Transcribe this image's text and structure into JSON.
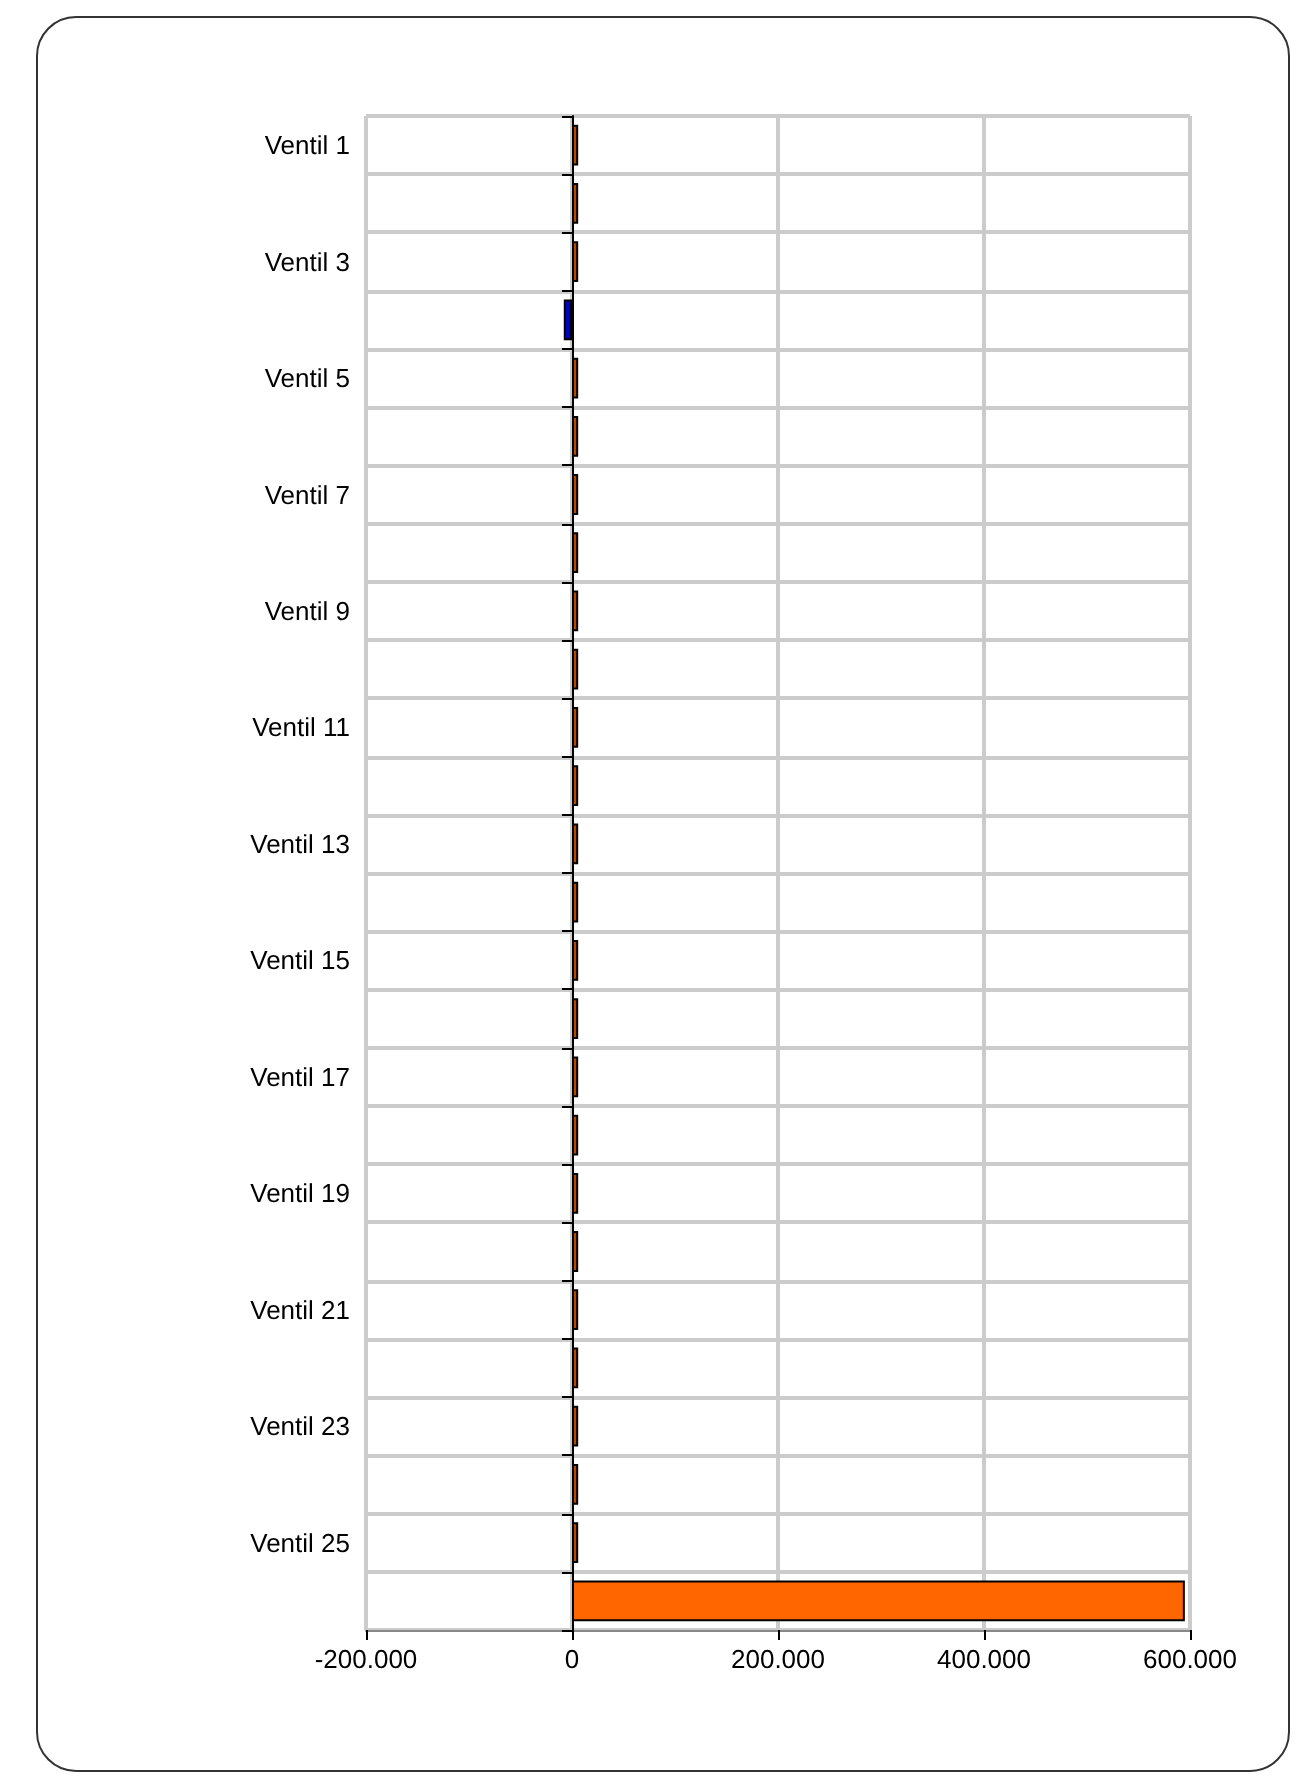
{
  "chart_data": {
    "type": "bar",
    "orientation": "horizontal",
    "categories": [
      "Ventil 1",
      null,
      "Ventil 3",
      null,
      "Ventil 5",
      null,
      "Ventil 7",
      null,
      "Ventil 9",
      null,
      "Ventil 11",
      null,
      "Ventil 13",
      null,
      "Ventil 15",
      null,
      "Ventil 17",
      null,
      "Ventil 19",
      null,
      "Ventil 21",
      null,
      "Ventil 23",
      null,
      "Ventil 25",
      null
    ],
    "values": [
      6000,
      6000,
      6000,
      -8000,
      6000,
      6000,
      6000,
      6000,
      6000,
      6000,
      6000,
      6000,
      6000,
      6000,
      6000,
      6000,
      6000,
      6000,
      6000,
      6000,
      6000,
      6000,
      6000,
      6000,
      6000,
      595000
    ],
    "colors": [
      "#b84a00",
      "#b84a00",
      "#b84a00",
      "#0000cc",
      "#b84a00",
      "#b84a00",
      "#b84a00",
      "#b84a00",
      "#b84a00",
      "#b84a00",
      "#b84a00",
      "#b84a00",
      "#b84a00",
      "#b84a00",
      "#b84a00",
      "#b84a00",
      "#b84a00",
      "#b84a00",
      "#b84a00",
      "#b84a00",
      "#b84a00",
      "#b84a00",
      "#b84a00",
      "#b84a00",
      "#b84a00",
      "#ff6600"
    ],
    "xlim": [
      -200000,
      600000
    ],
    "xticks": [
      {
        "value": -200000,
        "label": "-200.000"
      },
      0,
      {
        "value": 200000,
        "label": "200.000"
      },
      {
        "value": 400000,
        "label": "400.000"
      },
      {
        "value": 600000,
        "label": "600.000"
      }
    ],
    "grid": true
  }
}
